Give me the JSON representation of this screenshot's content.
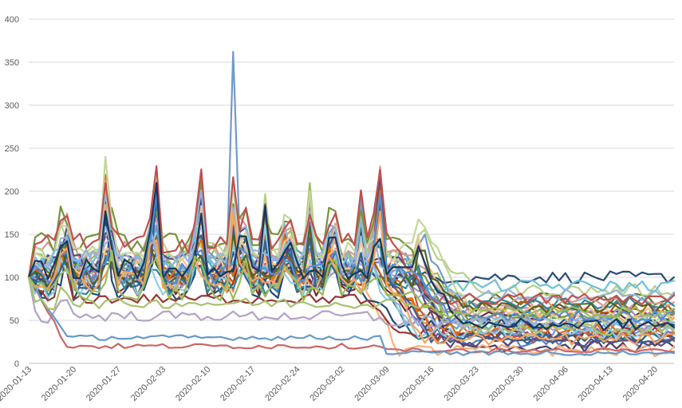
{
  "chart_data": {
    "type": "line",
    "title": "",
    "xlabel": "",
    "ylabel": "",
    "ylim": [
      0,
      400
    ],
    "yticks": [
      0,
      50,
      100,
      150,
      200,
      250,
      300,
      350,
      400
    ],
    "x_start": "2020-01-13",
    "x_end": "2020-04-23",
    "xticks": [
      "2020-01-13",
      "2020-01-20",
      "2020-01-27",
      "2020-02-03",
      "2020-02-10",
      "2020-02-17",
      "2020-02-24",
      "2020-03-02",
      "2020-03-09",
      "2020-03-16",
      "2020-03-23",
      "2020-03-30",
      "2020-04-06",
      "2020-04-13",
      "2020-04-20"
    ],
    "grid": true,
    "legend": "none",
    "series_profiles": [
      {
        "color": "#4f81bd",
        "level": 105,
        "end": 25
      },
      {
        "color": "#c0504d",
        "level": 110,
        "end": 30
      },
      {
        "color": "#9bbb59",
        "level": 120,
        "end": 60
      },
      {
        "color": "#8064a2",
        "level": 100,
        "end": 35
      },
      {
        "color": "#4bacc6",
        "level": 115,
        "end": 45
      },
      {
        "color": "#f79646",
        "level": 95,
        "end": 50
      },
      {
        "color": "#2c4d75",
        "level": 108,
        "end": 100
      },
      {
        "color": "#772c2a",
        "level": 90,
        "end": 55
      },
      {
        "color": "#5f7530",
        "level": 112,
        "end": 75
      },
      {
        "color": "#4d3b62",
        "level": 100,
        "end": 20
      },
      {
        "color": "#276a7c",
        "level": 105,
        "end": 30
      },
      {
        "color": "#b65708",
        "level": 98,
        "end": 65
      },
      {
        "color": "#729aca",
        "level": 120,
        "end": 40
      },
      {
        "color": "#d99694",
        "level": 130,
        "end": 70
      },
      {
        "color": "#b7d085",
        "level": 125,
        "end": 85
      },
      {
        "color": "#a694be",
        "level": 95,
        "end": 60
      },
      {
        "color": "#6fc0d9",
        "level": 110,
        "end": 90
      },
      {
        "color": "#fab07a",
        "level": 100,
        "end": 15
      },
      {
        "color": "#1f497d",
        "level": 85,
        "end": 45
      },
      {
        "color": "#953735",
        "level": 75,
        "end": 35
      },
      {
        "color": "#77933c",
        "level": 140,
        "end": 55
      },
      {
        "color": "#604a7b",
        "level": 115,
        "end": 25
      },
      {
        "color": "#31859c",
        "level": 92,
        "end": 70
      },
      {
        "color": "#e46c0a",
        "level": 102,
        "end": 40
      },
      {
        "color": "#95b3d7",
        "level": 118,
        "end": 80
      },
      {
        "color": "#c3d69b",
        "level": 130,
        "end": 50
      },
      {
        "color": "#b2a2c7",
        "level": 55,
        "end": 45
      },
      {
        "color": "#93cddd",
        "level": 88,
        "end": 35
      },
      {
        "color": "#fac090",
        "level": 110,
        "end": 60
      },
      {
        "color": "#366092",
        "level": 95,
        "end": 30
      },
      {
        "color": "#cc6666",
        "level": 20,
        "end": 15
      },
      {
        "color": "#6699cc",
        "level": 30,
        "end": 12
      },
      {
        "color": "#8eb4e3",
        "level": 120,
        "end": 50
      },
      {
        "color": "#a5c26c",
        "level": 70,
        "end": 40
      },
      {
        "color": "#4f6228",
        "level": 100,
        "end": 65
      },
      {
        "color": "#c0504d",
        "level": 140,
        "end": 75
      },
      {
        "color": "#558ed5",
        "level": 105,
        "end": 55
      },
      {
        "color": "#f7a35c",
        "level": 95,
        "end": 28
      },
      {
        "color": "#17375e",
        "level": 110,
        "end": 45
      },
      {
        "color": "#9bbb59",
        "level": 85,
        "end": 60
      }
    ]
  }
}
